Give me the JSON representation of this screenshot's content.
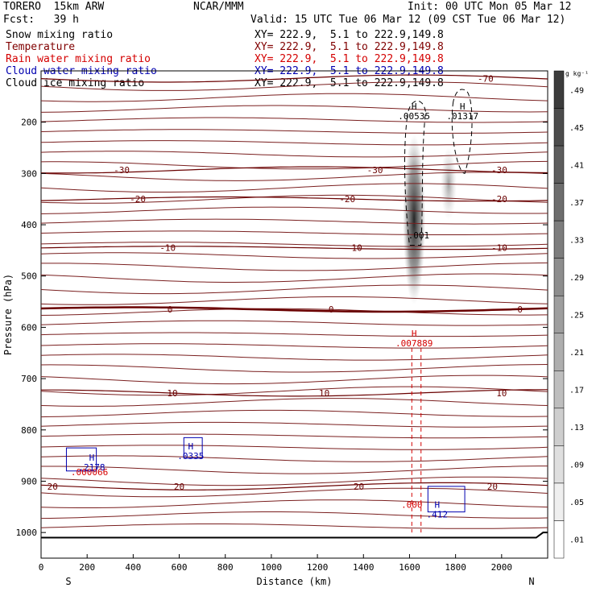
{
  "header": {
    "model": "TORERO  15km ARW",
    "org": "NCAR/MMM",
    "init": "Init: 00 UTC Mon 05 Mar 12",
    "fcst": "Fcst:   39 h",
    "valid": "Valid: 15 UTC Tue 06 Mar 12 (09 CST Tue 06 Mar 12)",
    "fields": [
      {
        "name": "Snow mixing ratio",
        "xy": "XY= 222.9,  5.1 to 222.9,149.8",
        "color": "#000000"
      },
      {
        "name": "Temperature",
        "xy": "XY= 222.9,  5.1 to 222.9,149.8",
        "color": "#800000"
      },
      {
        "name": "Rain water mixing ratio",
        "xy": "XY= 222.9,  5.1 to 222.9,149.8",
        "color": "#d40000"
      },
      {
        "name": "Cloud water mixing ratio",
        "xy": "XY= 222.9,  5.1 to 222.9,149.8",
        "color": "#0000b0"
      },
      {
        "name": "Cloud ice mixing ratio",
        "xy": "XY= 222.9,  5.1 to 222.9,149.8",
        "color": "#000000"
      }
    ]
  },
  "chart_data": {
    "type": "heatmap",
    "xlabel": "Distance (km)",
    "ylabel": "Pressure (hPa)",
    "xlim": [
      0,
      2200
    ],
    "ylim": [
      1050,
      100
    ],
    "x_ticks": [
      0,
      200,
      400,
      600,
      800,
      1000,
      1200,
      1400,
      1600,
      1800,
      2000
    ],
    "y_ticks": [
      200,
      300,
      400,
      500,
      600,
      700,
      800,
      900,
      1000
    ],
    "x_end_labels": {
      "left": "S",
      "right": "N"
    },
    "colorbar": {
      "unit": "g kg⁻¹",
      "labels": [
        ".49",
        ".45",
        ".41",
        ".37",
        ".33",
        ".29",
        ".25",
        ".21",
        ".17",
        ".13",
        ".09",
        ".05",
        ".01"
      ]
    },
    "temperature_contours": [
      {
        "value": -70,
        "label": "-70",
        "y": 115,
        "label_x": [
          1930
        ]
      },
      {
        "value": -30,
        "label": "-30",
        "y": 293,
        "label_x": [
          350,
          1450,
          1990
        ]
      },
      {
        "value": -20,
        "label": "-20",
        "y": 350,
        "label_x": [
          420,
          1330,
          1990
        ]
      },
      {
        "value": -10,
        "label": "-10",
        "y": 445,
        "label_x": [
          550,
          1360,
          1990
        ]
      },
      {
        "value": 0,
        "label": "0",
        "y": 565,
        "label_x": [
          560,
          1260,
          2080
        ]
      },
      {
        "value": 10,
        "label": "10",
        "y": 728,
        "label_x": [
          570,
          1230,
          2000
        ]
      },
      {
        "value": 20,
        "label": "20",
        "y": 910,
        "label_x": [
          50,
          600,
          1380,
          1960
        ]
      }
    ],
    "extrema": [
      {
        "label": "H",
        "value": ".00535",
        "x": 1620,
        "y": 175,
        "color": "#000000"
      },
      {
        "label": "H",
        "value": ".01317",
        "x": 1830,
        "y": 175,
        "color": "#000000"
      },
      {
        "label": ".001",
        "value": "",
        "x": 1640,
        "y": 427,
        "color": "#000000"
      },
      {
        "label": "H",
        "value": ".007889",
        "x": 1620,
        "y": 618,
        "color": "#d40000"
      },
      {
        "label": "H",
        "value": ".2178",
        "x": 220,
        "y": 860,
        "color": "#0000b0"
      },
      {
        "label": ".000066",
        "value": "",
        "x": 210,
        "y": 888,
        "color": "#d40000"
      },
      {
        "label": "H",
        "value": ".0335",
        "x": 650,
        "y": 838,
        "color": "#0000b0"
      },
      {
        "label": ".000",
        "value": "",
        "x": 1610,
        "y": 952,
        "color": "#d40000"
      },
      {
        "label": "H",
        "value": ".412",
        "x": 1720,
        "y": 952,
        "color": "#0000b0"
      }
    ]
  }
}
